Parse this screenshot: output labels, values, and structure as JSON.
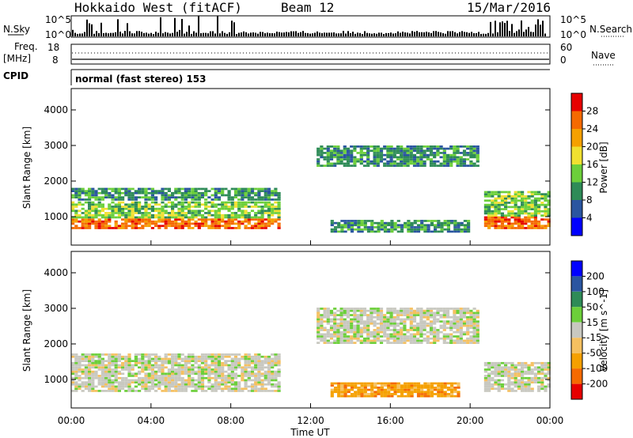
{
  "header": {
    "station": "Hokkaido West (fitACF)",
    "beam": "Beam 12",
    "date": "15/Mar/2016"
  },
  "top_panels": {
    "nsky_label": "N.Sky",
    "nsky_ticks": [
      "10^5",
      "10^0"
    ],
    "nsearch_label": "N.Search",
    "freq_label": "Freq.",
    "freq_unit": "[MHz]",
    "freq_ticks": [
      "18",
      "8"
    ],
    "nave_label": "Nave",
    "nave_ticks": [
      "60",
      "0"
    ],
    "cpid_label": "CPID",
    "cpid_text": "normal (fast stereo) 153"
  },
  "chart_data": [
    {
      "type": "heatmap",
      "name": "power",
      "ylabel": "Slant Range [km]",
      "yticks": [
        "1000",
        "2000",
        "3000",
        "4000"
      ],
      "ylim": [
        200,
        4600
      ],
      "colorbar_label": "Power [dB]",
      "colorbar_ticks": [
        "4",
        "8",
        "12",
        "16",
        "20",
        "24",
        "28"
      ],
      "colorbar_range": [
        0,
        32
      ],
      "colors": [
        "#0000ff",
        "#2a55a0",
        "#2e8b57",
        "#6ccf3a",
        "#f0e030",
        "#f5a000",
        "#f56a00",
        "#e60000"
      ],
      "bands": [
        {
          "t": [
            0,
            10.5
          ],
          "r_lo": 650,
          "r_hi": 950,
          "level": 22
        },
        {
          "t": [
            0,
            10.5
          ],
          "r_lo": 950,
          "r_hi": 1450,
          "level": 13
        },
        {
          "t": [
            0,
            10.5
          ],
          "r_lo": 1450,
          "r_hi": 1800,
          "level": 6
        },
        {
          "t": [
            12.3,
            20.4
          ],
          "r_lo": 2400,
          "r_hi": 3000,
          "level": 9
        },
        {
          "t": [
            13.0,
            20.0
          ],
          "r_lo": 550,
          "r_hi": 900,
          "level": 9
        },
        {
          "t": [
            20.7,
            24.0
          ],
          "r_lo": 650,
          "r_hi": 1000,
          "level": 22
        },
        {
          "t": [
            20.7,
            24.0
          ],
          "r_lo": 1000,
          "r_hi": 1700,
          "level": 12
        }
      ]
    },
    {
      "type": "heatmap",
      "name": "velocity",
      "ylabel": "Slant Range [km]",
      "yticks": [
        "1000",
        "2000",
        "3000",
        "4000"
      ],
      "ylim": [
        200,
        4600
      ],
      "xlabel": "Time UT",
      "xticks": [
        "00:00",
        "04:00",
        "08:00",
        "12:00",
        "16:00",
        "20:00",
        "00:00"
      ],
      "xlim": [
        0,
        24
      ],
      "colorbar_label": "Velocity [m s^-1]",
      "colorbar_ticks": [
        "-200",
        "-100",
        "-50",
        "-15",
        "15",
        "50",
        "100",
        "200"
      ],
      "colors": [
        "#e60000",
        "#f56a00",
        "#f5a000",
        "#f5c060",
        "#c8c8c0",
        "#6ccf3a",
        "#2e8b57",
        "#2a55a0",
        "#0000ff"
      ],
      "bands": [
        {
          "t": [
            0,
            10.5
          ],
          "r_lo": 650,
          "r_hi": 1700,
          "level": 4
        },
        {
          "t": [
            12.3,
            20.4
          ],
          "r_lo": 2000,
          "r_hi": 3000,
          "level": 4
        },
        {
          "t": [
            13.0,
            19.5
          ],
          "r_lo": 500,
          "r_hi": 900,
          "level": 2
        },
        {
          "t": [
            20.7,
            24.0
          ],
          "r_lo": 650,
          "r_hi": 1500,
          "level": 4
        }
      ]
    }
  ]
}
